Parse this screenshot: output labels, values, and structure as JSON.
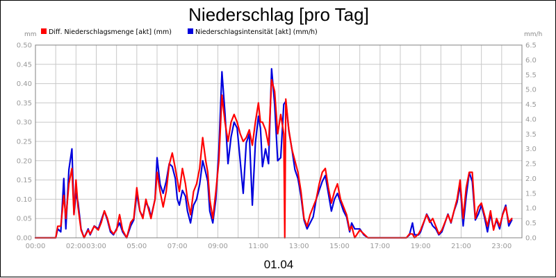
{
  "colors": {
    "rain_amount": "#ff0000",
    "rain_intensity": "#0000dd",
    "grid": "#c8c8c8",
    "axis": "#808080",
    "frame": "#000000"
  },
  "chart_data": {
    "type": "line",
    "title": "Niederschlag [pro Tag]",
    "date_label": "01.04",
    "y_left_unit": "mm",
    "y_right_unit": "mm/h",
    "ylim_left": [
      0,
      0.5
    ],
    "ylim_right": [
      0,
      6.5
    ],
    "y_left_ticks": [
      "0.00",
      "0.05",
      "0.10",
      "0.15",
      "0.20",
      "0.25",
      "0.30",
      "0.35",
      "0.40",
      "0.45",
      "0.50"
    ],
    "y_right_ticks": [
      "0.0",
      "0.5",
      "1.0",
      "1.5",
      "2.0",
      "2.5",
      "3.0",
      "3.5",
      "4.0",
      "4.5",
      "5.0",
      "5.5",
      "6.0",
      "6.5"
    ],
    "x_ticks": [
      {
        "h": 0,
        "label": "00:00"
      },
      {
        "h": 2,
        "label": "02:00"
      },
      {
        "h": 3,
        "label": "03:00"
      },
      {
        "h": 5,
        "label": "05:00"
      },
      {
        "h": 7,
        "label": "07:00"
      },
      {
        "h": 9,
        "label": "09:00"
      },
      {
        "h": 11,
        "label": "11:00"
      },
      {
        "h": 13,
        "label": "13:00"
      },
      {
        "h": 15,
        "label": "15:00"
      },
      {
        "h": 17,
        "label": "17:00"
      },
      {
        "h": 19,
        "label": "19:00"
      },
      {
        "h": 21,
        "label": "21:00"
      },
      {
        "h": 23,
        "label": "23:00"
      }
    ],
    "xlim_hours": [
      0,
      24
    ],
    "grid": true,
    "legend_position": "top-left",
    "series": [
      {
        "name": "Diff. Niederschlagsmenge [akt] (mm)",
        "color": "#ff0000",
        "axis": "left",
        "points": [
          [
            0.0,
            0
          ],
          [
            1.0,
            0
          ],
          [
            1.1,
            0.03
          ],
          [
            1.25,
            0.03
          ],
          [
            1.4,
            0.11
          ],
          [
            1.5,
            0.05
          ],
          [
            1.65,
            0.14
          ],
          [
            1.8,
            0.18
          ],
          [
            1.9,
            0.06
          ],
          [
            2.0,
            0.15
          ],
          [
            2.1,
            0.08
          ],
          [
            2.25,
            0.02
          ],
          [
            2.4,
            0
          ],
          [
            2.6,
            0.02
          ],
          [
            2.7,
            0.01
          ],
          [
            2.9,
            0.03
          ],
          [
            3.1,
            0.02
          ],
          [
            3.25,
            0.04
          ],
          [
            3.4,
            0.07
          ],
          [
            3.55,
            0.05
          ],
          [
            3.7,
            0.02
          ],
          [
            3.85,
            0.01
          ],
          [
            4.0,
            0.02
          ],
          [
            4.15,
            0.06
          ],
          [
            4.3,
            0.02
          ],
          [
            4.5,
            0
          ],
          [
            4.7,
            0.04
          ],
          [
            4.85,
            0.05
          ],
          [
            5.0,
            0.13
          ],
          [
            5.15,
            0.07
          ],
          [
            5.3,
            0.05
          ],
          [
            5.45,
            0.1
          ],
          [
            5.6,
            0.07
          ],
          [
            5.7,
            0.05
          ],
          [
            5.9,
            0.1
          ],
          [
            6.0,
            0.17
          ],
          [
            6.15,
            0.12
          ],
          [
            6.3,
            0.08
          ],
          [
            6.45,
            0.12
          ],
          [
            6.6,
            0.19
          ],
          [
            6.75,
            0.22
          ],
          [
            6.9,
            0.18
          ],
          [
            7.0,
            0.15
          ],
          [
            7.1,
            0.12
          ],
          [
            7.25,
            0.18
          ],
          [
            7.4,
            0.14
          ],
          [
            7.5,
            0.1
          ],
          [
            7.65,
            0.06
          ],
          [
            7.8,
            0.12
          ],
          [
            7.95,
            0.14
          ],
          [
            8.1,
            0.18
          ],
          [
            8.25,
            0.26
          ],
          [
            8.4,
            0.2
          ],
          [
            8.5,
            0.17
          ],
          [
            8.6,
            0.1
          ],
          [
            8.75,
            0.05
          ],
          [
            8.9,
            0.12
          ],
          [
            9.05,
            0.2
          ],
          [
            9.2,
            0.37
          ],
          [
            9.35,
            0.3
          ],
          [
            9.5,
            0.25
          ],
          [
            9.65,
            0.3
          ],
          [
            9.8,
            0.32
          ],
          [
            9.95,
            0.3
          ],
          [
            10.1,
            0.27
          ],
          [
            10.25,
            0.25
          ],
          [
            10.4,
            0.26
          ],
          [
            10.55,
            0.28
          ],
          [
            10.7,
            0.24
          ],
          [
            10.85,
            0.3
          ],
          [
            11.0,
            0.35
          ],
          [
            11.1,
            0.3
          ],
          [
            11.2,
            0.3
          ],
          [
            11.35,
            0.28
          ],
          [
            11.5,
            0.24
          ],
          [
            11.65,
            0.41
          ],
          [
            11.8,
            0.38
          ],
          [
            11.95,
            0.27
          ],
          [
            12.1,
            0.32
          ],
          [
            12.25,
            0.27
          ],
          [
            12.3,
            0.0
          ],
          [
            12.35,
            0.36
          ],
          [
            12.5,
            0.28
          ],
          [
            12.65,
            0.23
          ],
          [
            12.8,
            0.2
          ],
          [
            12.95,
            0.17
          ],
          [
            13.1,
            0.12
          ],
          [
            13.25,
            0.05
          ],
          [
            13.4,
            0.03
          ],
          [
            13.55,
            0.06
          ],
          [
            13.7,
            0.08
          ],
          [
            13.85,
            0.1
          ],
          [
            14.0,
            0.14
          ],
          [
            14.15,
            0.17
          ],
          [
            14.3,
            0.18
          ],
          [
            14.45,
            0.13
          ],
          [
            14.6,
            0.09
          ],
          [
            14.75,
            0.12
          ],
          [
            14.9,
            0.14
          ],
          [
            15.05,
            0.1
          ],
          [
            15.2,
            0.08
          ],
          [
            15.35,
            0.06
          ],
          [
            15.5,
            0.02
          ],
          [
            15.6,
            0.03
          ],
          [
            15.75,
            0
          ],
          [
            16.0,
            0.02
          ],
          [
            16.2,
            0.01
          ],
          [
            16.4,
            0
          ],
          [
            18.0,
            0
          ],
          [
            18.3,
            0
          ],
          [
            18.45,
            0.01
          ],
          [
            18.6,
            0.01
          ],
          [
            18.7,
            0
          ],
          [
            18.9,
            0.01
          ],
          [
            19.0,
            0.02
          ],
          [
            19.15,
            0.04
          ],
          [
            19.3,
            0.06
          ],
          [
            19.45,
            0.04
          ],
          [
            19.6,
            0.05
          ],
          [
            19.75,
            0.03
          ],
          [
            19.9,
            0.01
          ],
          [
            20.05,
            0.02
          ],
          [
            20.2,
            0.04
          ],
          [
            20.35,
            0.06
          ],
          [
            20.5,
            0.04
          ],
          [
            20.65,
            0.07
          ],
          [
            20.8,
            0.1
          ],
          [
            20.95,
            0.15
          ],
          [
            21.1,
            0.05
          ],
          [
            21.25,
            0.13
          ],
          [
            21.4,
            0.17
          ],
          [
            21.55,
            0.17
          ],
          [
            21.7,
            0.05
          ],
          [
            21.85,
            0.08
          ],
          [
            22.0,
            0.09
          ],
          [
            22.15,
            0.06
          ],
          [
            22.3,
            0.03
          ],
          [
            22.45,
            0.07
          ],
          [
            22.6,
            0.02
          ],
          [
            22.75,
            0.05
          ],
          [
            22.9,
            0.03
          ],
          [
            23.05,
            0.06
          ],
          [
            23.2,
            0.08
          ],
          [
            23.35,
            0.04
          ],
          [
            23.5,
            0.05
          ]
        ]
      },
      {
        "name": "Niederschlagsintensität [akt] (mm/h)",
        "color": "#0000dd",
        "axis": "right",
        "points": [
          [
            0.0,
            0
          ],
          [
            1.0,
            0
          ],
          [
            1.1,
            0.3
          ],
          [
            1.25,
            0.2
          ],
          [
            1.4,
            2.0
          ],
          [
            1.5,
            0.3
          ],
          [
            1.65,
            2.3
          ],
          [
            1.8,
            3.0
          ],
          [
            1.9,
            0.8
          ],
          [
            2.0,
            1.5
          ],
          [
            2.1,
            1.2
          ],
          [
            2.25,
            0.3
          ],
          [
            2.4,
            0
          ],
          [
            2.6,
            0.3
          ],
          [
            2.7,
            0.1
          ],
          [
            2.9,
            0.4
          ],
          [
            3.1,
            0.3
          ],
          [
            3.25,
            0.6
          ],
          [
            3.4,
            0.9
          ],
          [
            3.55,
            0.6
          ],
          [
            3.7,
            0.2
          ],
          [
            3.85,
            0.1
          ],
          [
            4.0,
            0.3
          ],
          [
            4.15,
            0.5
          ],
          [
            4.3,
            0.2
          ],
          [
            4.5,
            0
          ],
          [
            4.7,
            0.4
          ],
          [
            4.85,
            0.6
          ],
          [
            5.0,
            1.5
          ],
          [
            5.15,
            0.9
          ],
          [
            5.3,
            0.7
          ],
          [
            5.45,
            1.2
          ],
          [
            5.6,
            1.0
          ],
          [
            5.7,
            0.7
          ],
          [
            5.9,
            1.3
          ],
          [
            6.0,
            2.7
          ],
          [
            6.15,
            1.8
          ],
          [
            6.3,
            1.5
          ],
          [
            6.45,
            1.9
          ],
          [
            6.6,
            2.5
          ],
          [
            6.75,
            2.4
          ],
          [
            6.9,
            2.0
          ],
          [
            7.0,
            1.3
          ],
          [
            7.1,
            1.1
          ],
          [
            7.25,
            1.6
          ],
          [
            7.4,
            1.4
          ],
          [
            7.5,
            0.9
          ],
          [
            7.65,
            0.5
          ],
          [
            7.8,
            1.1
          ],
          [
            7.95,
            1.3
          ],
          [
            8.1,
            1.8
          ],
          [
            8.25,
            2.6
          ],
          [
            8.4,
            2.2
          ],
          [
            8.5,
            1.9
          ],
          [
            8.6,
            0.9
          ],
          [
            8.75,
            0.5
          ],
          [
            8.9,
            1.3
          ],
          [
            9.05,
            3.0
          ],
          [
            9.2,
            5.6
          ],
          [
            9.35,
            4.2
          ],
          [
            9.5,
            2.5
          ],
          [
            9.65,
            3.4
          ],
          [
            9.8,
            3.9
          ],
          [
            9.95,
            3.7
          ],
          [
            10.1,
            2.6
          ],
          [
            10.25,
            1.5
          ],
          [
            10.4,
            3.2
          ],
          [
            10.55,
            3.5
          ],
          [
            10.7,
            1.1
          ],
          [
            10.85,
            3.2
          ],
          [
            11.0,
            4.1
          ],
          [
            11.1,
            3.7
          ],
          [
            11.2,
            2.4
          ],
          [
            11.35,
            3.0
          ],
          [
            11.5,
            2.5
          ],
          [
            11.65,
            5.7
          ],
          [
            11.8,
            4.5
          ],
          [
            11.95,
            2.6
          ],
          [
            12.1,
            2.7
          ],
          [
            12.25,
            4.5
          ],
          [
            12.35,
            4.6
          ],
          [
            12.5,
            3.6
          ],
          [
            12.65,
            3.0
          ],
          [
            12.8,
            2.3
          ],
          [
            12.95,
            2.0
          ],
          [
            13.1,
            1.4
          ],
          [
            13.25,
            0.6
          ],
          [
            13.4,
            0.3
          ],
          [
            13.55,
            0.5
          ],
          [
            13.7,
            0.7
          ],
          [
            13.85,
            1.3
          ],
          [
            14.0,
            1.6
          ],
          [
            14.15,
            1.9
          ],
          [
            14.3,
            2.1
          ],
          [
            14.45,
            1.5
          ],
          [
            14.6,
            0.9
          ],
          [
            14.75,
            1.3
          ],
          [
            14.9,
            1.5
          ],
          [
            15.05,
            1.2
          ],
          [
            15.2,
            0.9
          ],
          [
            15.35,
            0.7
          ],
          [
            15.5,
            0.2
          ],
          [
            15.6,
            0.5
          ],
          [
            15.75,
            0.3
          ],
          [
            16.0,
            0.3
          ],
          [
            16.2,
            0.1
          ],
          [
            16.4,
            0
          ],
          [
            18.0,
            0
          ],
          [
            18.3,
            0
          ],
          [
            18.45,
            0.1
          ],
          [
            18.6,
            0.5
          ],
          [
            18.7,
            0.1
          ],
          [
            18.9,
            0.1
          ],
          [
            19.0,
            0.2
          ],
          [
            19.15,
            0.5
          ],
          [
            19.3,
            0.8
          ],
          [
            19.45,
            0.6
          ],
          [
            19.6,
            0.4
          ],
          [
            19.75,
            0.3
          ],
          [
            19.9,
            0.1
          ],
          [
            20.05,
            0.2
          ],
          [
            20.2,
            0.5
          ],
          [
            20.35,
            0.8
          ],
          [
            20.5,
            0.5
          ],
          [
            20.65,
            0.9
          ],
          [
            20.8,
            1.2
          ],
          [
            20.95,
            1.8
          ],
          [
            21.1,
            0.4
          ],
          [
            21.25,
            1.4
          ],
          [
            21.4,
            2.2
          ],
          [
            21.55,
            1.9
          ],
          [
            21.7,
            0.6
          ],
          [
            21.85,
            0.8
          ],
          [
            22.0,
            1.1
          ],
          [
            22.15,
            0.7
          ],
          [
            22.3,
            0.2
          ],
          [
            22.45,
            0.8
          ],
          [
            22.6,
            0.3
          ],
          [
            22.75,
            0.6
          ],
          [
            22.9,
            0.3
          ],
          [
            23.05,
            0.8
          ],
          [
            23.2,
            1.1
          ],
          [
            23.35,
            0.4
          ],
          [
            23.5,
            0.6
          ]
        ]
      }
    ]
  }
}
